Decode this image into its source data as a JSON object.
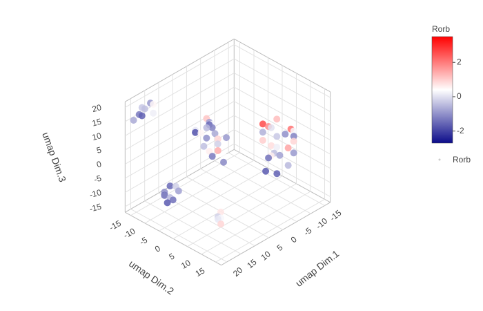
{
  "chart_data": {
    "type": "scatter3d",
    "xlabel": "umap Dim.1",
    "ylabel": "umap Dim.2",
    "zlabel": "umap Dim.3",
    "xlim": [
      -17,
      22
    ],
    "ylim": [
      -17,
      17
    ],
    "zlim": [
      -17,
      22
    ],
    "xticks": [
      -15,
      -10,
      -5,
      0,
      5,
      10,
      15,
      20
    ],
    "yticks": [
      -15,
      -10,
      -5,
      0,
      5,
      10,
      15
    ],
    "zticks": [
      -15,
      -10,
      -5,
      0,
      5,
      10,
      15,
      20
    ],
    "grid": true,
    "colorbar_title": "Rorb",
    "colorbar_ticks": [
      -2,
      0,
      2
    ],
    "cmin": -2.7,
    "cmax": 3.5,
    "colorscale": [
      [
        0,
        "#0c0c8a"
      ],
      [
        0.5,
        "#ffffff"
      ],
      [
        1,
        "#ff0000"
      ]
    ],
    "legend_position": "right",
    "series": [
      {
        "name": "Rorb",
        "x": [
          3,
          4,
          6,
          7,
          2,
          5,
          8,
          4,
          6,
          3,
          7,
          5,
          2,
          8,
          4,
          6,
          3,
          7,
          5,
          6,
          -6,
          -8,
          -9,
          -5,
          -10,
          -7,
          -4,
          -11,
          -8,
          -6,
          -9,
          -5,
          -12,
          -7,
          -3,
          -8,
          -10,
          -6,
          -4,
          -9,
          -11,
          -6,
          -7,
          -3,
          18,
          19,
          20,
          21,
          17,
          19,
          18,
          20,
          13,
          14,
          16,
          15,
          17,
          14,
          16,
          13,
          15,
          17,
          7,
          8,
          9,
          8,
          9
        ],
        "y": [
          -6,
          -4,
          -2,
          -5,
          -7,
          -1,
          -3,
          -6,
          0,
          -3,
          -1,
          -4,
          -5,
          -6,
          1,
          -8,
          -1,
          -3,
          -5,
          2,
          6,
          7,
          9,
          5,
          10,
          8,
          9,
          7,
          11,
          10,
          6,
          7,
          9,
          12,
          8,
          5,
          11,
          4,
          6,
          12,
          10,
          9,
          6,
          11,
          -12,
          -13,
          -14,
          -15,
          -12,
          -14,
          -11,
          -13,
          -10,
          -6,
          -9,
          -7,
          -8,
          -9,
          -6,
          -8,
          -10,
          -7,
          2,
          3,
          4,
          2,
          3
        ],
        "z": [
          10,
          11,
          12,
          9,
          8,
          8,
          6,
          5,
          5,
          4,
          3,
          2,
          6,
          10,
          9,
          7,
          1,
          12,
          13,
          2,
          10,
          12,
          11,
          8,
          9,
          7,
          6,
          5,
          4,
          2,
          1,
          0,
          3,
          -1,
          -3,
          -2,
          7,
          4,
          12,
          10,
          0,
          -5,
          9,
          5,
          22,
          20,
          18,
          16,
          21,
          17,
          19,
          21,
          -9,
          -8,
          -10,
          -11,
          -9,
          -12,
          -10,
          -8,
          -10,
          -11,
          -15,
          -16,
          -17,
          -17,
          -15
        ],
        "values": [
          -0.8,
          0.3,
          -1.2,
          0.5,
          -1.5,
          0.9,
          -0.4,
          -1.0,
          1.4,
          -0.2,
          -1.3,
          0.6,
          -0.7,
          0.1,
          -0.9,
          -1.8,
          0.4,
          -0.5,
          1.1,
          -1.1,
          1.8,
          1.2,
          0.4,
          -0.6,
          2.1,
          -0.3,
          0.8,
          -1.0,
          1.5,
          -0.8,
          0.2,
          -1.4,
          0.9,
          -0.5,
          -1.7,
          0.6,
          -1.2,
          1.0,
          2.6,
          0.3,
          -0.9,
          -1.6,
          0.0,
          -0.4,
          -0.9,
          -0.4,
          -1.3,
          -0.7,
          0.5,
          -1.6,
          0.2,
          -0.3,
          -1.5,
          -0.8,
          -1.9,
          0.3,
          -1.1,
          -0.5,
          -1.4,
          -0.2,
          -1.0,
          -1.7,
          0.7,
          0.3,
          0.9,
          0.1,
          -0.2
        ]
      }
    ]
  }
}
